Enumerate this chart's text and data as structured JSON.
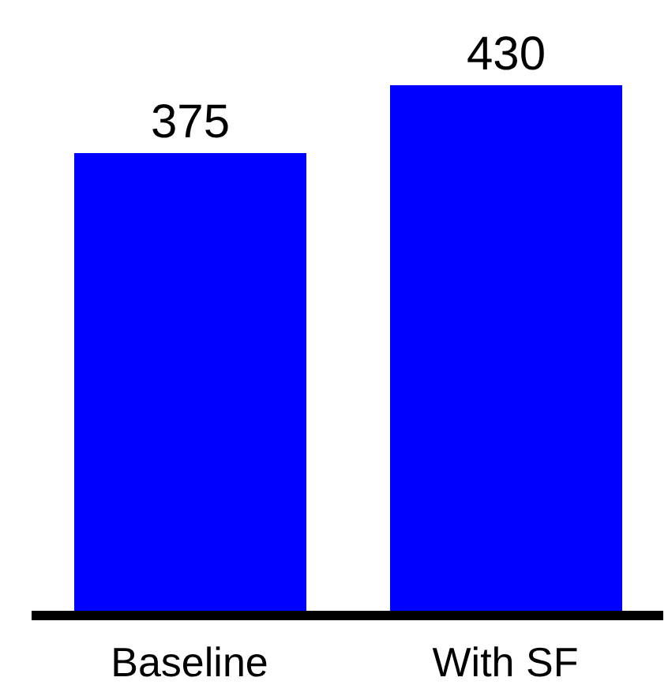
{
  "chart_data": {
    "type": "bar",
    "categories": [
      "Baseline",
      "With SF"
    ],
    "values": [
      375,
      430
    ],
    "color": "#0000ff",
    "data_labels": true
  }
}
